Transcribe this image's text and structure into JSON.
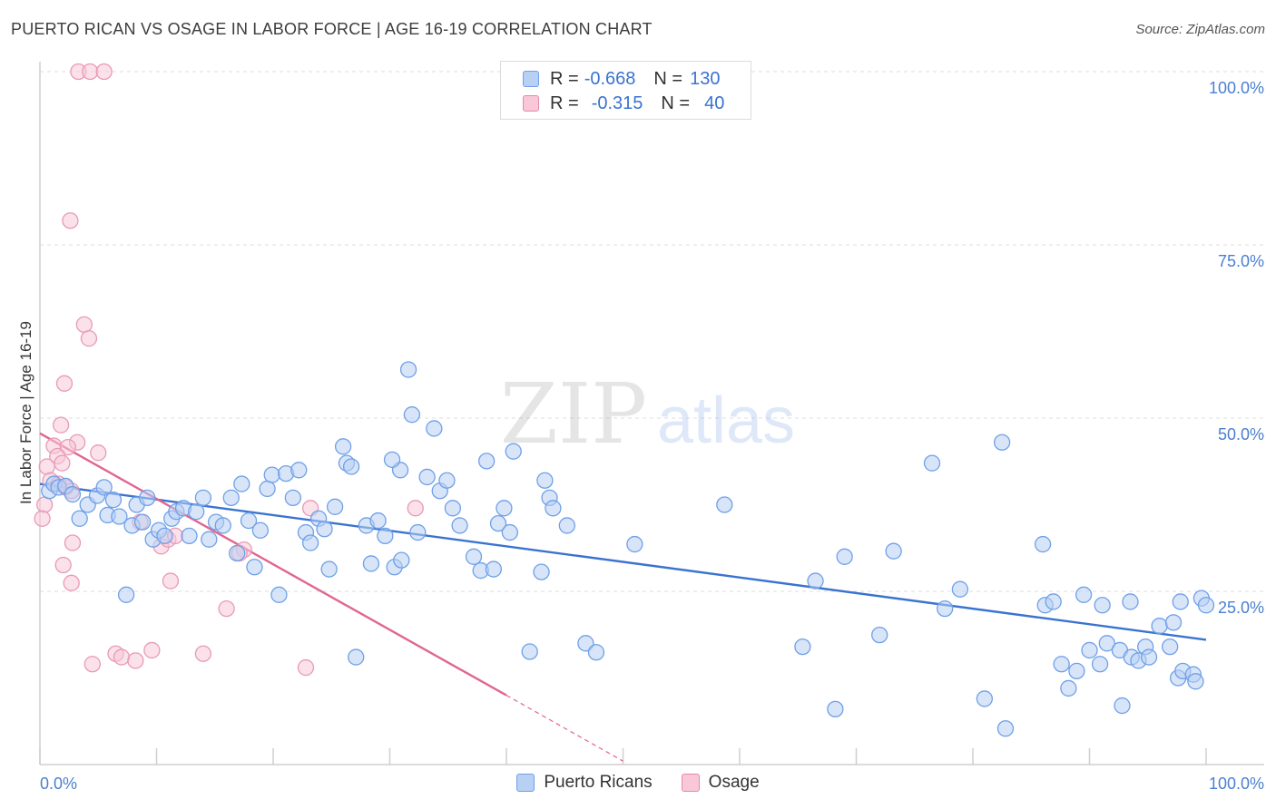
{
  "header": {
    "title": "PUERTO RICAN VS OSAGE IN LABOR FORCE | AGE 16-19 CORRELATION CHART",
    "source": "Source: ZipAtlas.com"
  },
  "watermark": {
    "zip": "ZIP",
    "atlas": "atlas"
  },
  "legend": {
    "rows": [
      {
        "r_label": "R =",
        "r_value": "-0.668",
        "n_label": "N =",
        "n_value": "130",
        "color": "#6fa0e8",
        "fill": "#b8d0f4"
      },
      {
        "r_label": "R =",
        "r_value": "-0.315",
        "n_label": "N =",
        "n_value": "40",
        "color": "#e888a8",
        "fill": "#f8c8d8"
      }
    ]
  },
  "bottom_legend": [
    {
      "label": "Puerto Ricans",
      "color": "#6fa0e8",
      "fill": "#b8d0f4"
    },
    {
      "label": "Osage",
      "color": "#e888a8",
      "fill": "#f8c8d8"
    }
  ],
  "chart_data": {
    "type": "scatter",
    "title": "PUERTO RICAN VS OSAGE IN LABOR FORCE | AGE 16-19 CORRELATION CHART",
    "ylabel": "In Labor Force | Age 16-19",
    "xlabel": "",
    "xlim": [
      0,
      100
    ],
    "ylim": [
      0,
      100
    ],
    "x_tick_labels": [
      "0.0%",
      "100.0%"
    ],
    "y_tick_labels": [
      "25.0%",
      "50.0%",
      "75.0%",
      "100.0%"
    ],
    "y_ticks": [
      25,
      50,
      75,
      100
    ],
    "grid": true,
    "legend_position": "top-center",
    "series": [
      {
        "name": "Puerto Ricans",
        "color": "#4a7fd0",
        "fill": "#b8d0f4",
        "trend": {
          "x": [
            0,
            100
          ],
          "y": [
            40.5,
            18.0
          ]
        },
        "points": [
          [
            0.8,
            39.5
          ],
          [
            1.2,
            40.5
          ],
          [
            1.6,
            40
          ],
          [
            2.2,
            40.2
          ],
          [
            2.8,
            39
          ],
          [
            3.4,
            35.5
          ],
          [
            4.1,
            37.5
          ],
          [
            4.9,
            38.8
          ],
          [
            5.5,
            40
          ],
          [
            5.8,
            36
          ],
          [
            6.3,
            38.2
          ],
          [
            6.8,
            35.8
          ],
          [
            7.4,
            24.5
          ],
          [
            7.9,
            34.5
          ],
          [
            8.3,
            37.5
          ],
          [
            8.8,
            35
          ],
          [
            9.2,
            38.5
          ],
          [
            9.7,
            32.5
          ],
          [
            10.2,
            33.8
          ],
          [
            10.7,
            33
          ],
          [
            11.3,
            35.5
          ],
          [
            11.7,
            36.5
          ],
          [
            12.3,
            37
          ],
          [
            12.8,
            33
          ],
          [
            13.4,
            36.5
          ],
          [
            14.0,
            38.5
          ],
          [
            14.5,
            32.5
          ],
          [
            15.1,
            35
          ],
          [
            15.7,
            34.5
          ],
          [
            16.4,
            38.5
          ],
          [
            16.9,
            30.5
          ],
          [
            17.3,
            40.5
          ],
          [
            17.9,
            35.2
          ],
          [
            18.4,
            28.5
          ],
          [
            18.9,
            33.8
          ],
          [
            19.5,
            39.8
          ],
          [
            19.9,
            41.8
          ],
          [
            20.5,
            24.5
          ],
          [
            21.1,
            42
          ],
          [
            21.7,
            38.5
          ],
          [
            22.2,
            42.5
          ],
          [
            22.8,
            33.5
          ],
          [
            23.2,
            32
          ],
          [
            23.9,
            35.5
          ],
          [
            24.4,
            34
          ],
          [
            24.8,
            28.2
          ],
          [
            25.3,
            37.2
          ],
          [
            26.0,
            45.9
          ],
          [
            26.3,
            43.5
          ],
          [
            26.7,
            43
          ],
          [
            27.1,
            15.5
          ],
          [
            28.0,
            34.5
          ],
          [
            28.4,
            29
          ],
          [
            29.0,
            35.2
          ],
          [
            29.6,
            33
          ],
          [
            30.4,
            28.5
          ],
          [
            30.9,
            42.5
          ],
          [
            30.2,
            44
          ],
          [
            31.0,
            29.5
          ],
          [
            31.6,
            57
          ],
          [
            31.9,
            50.5
          ],
          [
            32.4,
            33.5
          ],
          [
            33.2,
            41.5
          ],
          [
            33.8,
            48.5
          ],
          [
            34.3,
            39.5
          ],
          [
            34.9,
            41
          ],
          [
            35.4,
            37
          ],
          [
            36.0,
            34.5
          ],
          [
            37.2,
            30
          ],
          [
            37.8,
            28
          ],
          [
            38.3,
            43.8
          ],
          [
            38.9,
            28.2
          ],
          [
            39.3,
            34.8
          ],
          [
            39.8,
            37
          ],
          [
            40.3,
            33.5
          ],
          [
            40.6,
            45.2
          ],
          [
            42.0,
            16.3
          ],
          [
            43.0,
            27.8
          ],
          [
            43.3,
            41
          ],
          [
            43.7,
            38.5
          ],
          [
            44.0,
            37
          ],
          [
            45.2,
            34.5
          ],
          [
            46.8,
            17.5
          ],
          [
            47.7,
            16.2
          ],
          [
            51.0,
            31.8
          ],
          [
            58.7,
            37.5
          ],
          [
            65.4,
            17
          ],
          [
            66.5,
            26.5
          ],
          [
            68.2,
            8
          ],
          [
            69.0,
            30
          ],
          [
            72.0,
            18.7
          ],
          [
            73.2,
            30.8
          ],
          [
            76.5,
            43.5
          ],
          [
            77.6,
            22.5
          ],
          [
            78.9,
            25.3
          ],
          [
            81.0,
            9.5
          ],
          [
            82.8,
            5.2
          ],
          [
            82.5,
            46.5
          ],
          [
            86.0,
            31.8
          ],
          [
            86.2,
            23
          ],
          [
            86.9,
            23.5
          ],
          [
            87.6,
            14.5
          ],
          [
            88.2,
            11
          ],
          [
            88.9,
            13.5
          ],
          [
            89.5,
            24.5
          ],
          [
            90.0,
            16.5
          ],
          [
            90.9,
            14.5
          ],
          [
            91.1,
            23
          ],
          [
            91.5,
            17.5
          ],
          [
            92.6,
            16.5
          ],
          [
            92.8,
            8.5
          ],
          [
            93.5,
            23.5
          ],
          [
            93.6,
            15.5
          ],
          [
            94.2,
            15
          ],
          [
            94.8,
            17
          ],
          [
            95.1,
            15.5
          ],
          [
            96.0,
            20
          ],
          [
            96.9,
            17
          ],
          [
            97.2,
            20.5
          ],
          [
            97.6,
            12.5
          ],
          [
            98.0,
            13.5
          ],
          [
            98.9,
            13
          ],
          [
            99.1,
            12
          ],
          [
            99.6,
            24
          ],
          [
            97.8,
            23.5
          ],
          [
            100.0,
            23
          ]
        ]
      },
      {
        "name": "Osage",
        "color": "#e06690",
        "fill": "#f8c8d8",
        "trend": {
          "x": [
            0,
            40
          ],
          "y": [
            47.8,
            10
          ],
          "dashed_to": [
            50,
            0.5
          ]
        },
        "points": [
          [
            3.3,
            100
          ],
          [
            4.3,
            100
          ],
          [
            5.5,
            100
          ],
          [
            2.6,
            78.5
          ],
          [
            3.8,
            63.5
          ],
          [
            4.2,
            61.5
          ],
          [
            2.1,
            55
          ],
          [
            1.8,
            49
          ],
          [
            1.2,
            46
          ],
          [
            3.2,
            46.5
          ],
          [
            2.4,
            45.8
          ],
          [
            1.5,
            44.5
          ],
          [
            5.0,
            45
          ],
          [
            1.9,
            43.5
          ],
          [
            0.6,
            43
          ],
          [
            0.9,
            41
          ],
          [
            1.6,
            40.5
          ],
          [
            2.2,
            40
          ],
          [
            2.7,
            39.5
          ],
          [
            0.4,
            37.5
          ],
          [
            0.2,
            35.5
          ],
          [
            2.8,
            32
          ],
          [
            2.0,
            28.8
          ],
          [
            2.7,
            26.2
          ],
          [
            8.6,
            35
          ],
          [
            10.4,
            31.5
          ],
          [
            11.0,
            32.5
          ],
          [
            11.6,
            33
          ],
          [
            11.2,
            26.5
          ],
          [
            17.5,
            31
          ],
          [
            17.1,
            30.5
          ],
          [
            16.0,
            22.5
          ],
          [
            23.2,
            37
          ],
          [
            32.2,
            37
          ],
          [
            4.5,
            14.5
          ],
          [
            6.5,
            16
          ],
          [
            7.0,
            15.5
          ],
          [
            8.2,
            15
          ],
          [
            9.6,
            16.5
          ],
          [
            14.0,
            16
          ],
          [
            22.8,
            14
          ]
        ]
      }
    ]
  }
}
